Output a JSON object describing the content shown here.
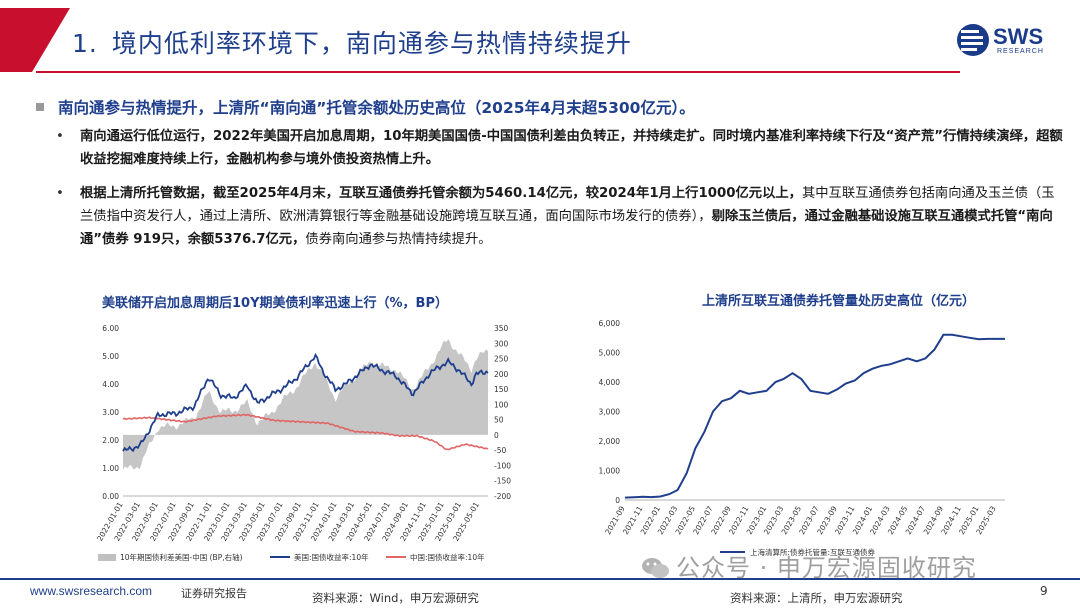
{
  "header": {
    "number": "1.",
    "title": "境内低利率环境下，南向通参与热情持续提升",
    "logo_main": "SWS",
    "logo_sub": "RESEARCH",
    "brand_color": "#1f3f8c",
    "accent_color": "#c8102e"
  },
  "lead": "南向通参与热情提升，上清所“南向通”托管余额处历史高位（2025年4月末超5300亿元）。",
  "bullets": [
    {
      "bold": "南向通运行低位运行，2022年美国开启加息周期，10年期美国国债-中国国债利差由负转正，并持续走扩。同时境内基准利率持续下行及“资产荒”行情持续演绎，超额收益挖掘难度持续上行，金融机构参与境外债投资热情上升。",
      "normal": ""
    },
    {
      "bold": "根据上清所托管数据，截至2025年4月末，互联互通债券托管余额为5460.14亿元，较2024年1月上行1000亿元以上，",
      "normal": "其中互联互通债券包括南向通及玉兰债（玉兰债指中资发行人，通过上清所、欧洲清算银行等金融基础设施跨境互联互通，面向国际市场发行的债券），",
      "bold2": "剔除玉兰债后，通过金融基础设施互联互通模式托管“南向通”债券 919只，余额5376.7亿元，",
      "normal2": "债券南向通参与热情持续提升。"
    }
  ],
  "chart1": {
    "title": "美联储开启加息周期后10Y期美债利率迅速上行（%，BP）",
    "left_ticks": [
      "6.00",
      "5.00",
      "4.00",
      "3.00",
      "2.00",
      "1.00",
      "0.00"
    ],
    "right_ticks": [
      "350",
      "300",
      "250",
      "200",
      "150",
      "100",
      "50",
      "0",
      "-50",
      "-100",
      "-150",
      "-200"
    ],
    "x_ticks": [
      "2022-01-01",
      "2022-03-01",
      "2022-05-01",
      "2022-07-01",
      "2022-09-01",
      "2022-11-01",
      "2023-01-01",
      "2023-03-01",
      "2023-05-01",
      "2023-07-01",
      "2023-09-01",
      "2023-11-01",
      "2024-01-01",
      "2024-03-01",
      "2024-05-01",
      "2024-07-01",
      "2024-09-01",
      "2024-11-01",
      "2025-01-01",
      "2025-03-01",
      "2025-05-01"
    ],
    "legend": [
      "10年期国债利差美国-中国 (BP,右轴)",
      "美国:国债收益率:10年",
      "中国:国债收益率:10年"
    ],
    "colors": {
      "spread": "#c0c0c0",
      "us": "#1f3f8c",
      "cn": "#e06666"
    },
    "source": "资料来源：Wind，申万宏源研究"
  },
  "chart2": {
    "title": "上清所互联互通债券托管量处历史高位（亿元）",
    "y_ticks": [
      "6,000",
      "5,000",
      "4,000",
      "3,000",
      "2,000",
      "1,000",
      "0"
    ],
    "x_ticks": [
      "2021-09",
      "2021-11",
      "2022-01",
      "2022-03",
      "2022-05",
      "2022-07",
      "2022-09",
      "2022-11",
      "2023-01",
      "2023-03",
      "2023-05",
      "2023-07",
      "2023-09",
      "2023-11",
      "2024-01",
      "2024-03",
      "2024-05",
      "2024-07",
      "2024-09",
      "2024-11",
      "2025-01",
      "2025-03"
    ],
    "legend": "上海清算所:债券托管量:互联互通债券",
    "color": "#1f3f8c",
    "source": "资料来源：上清所，申万宏源研究"
  },
  "chart_data": [
    {
      "type": "line",
      "title": "美联储开启加息周期后10Y期美债利率迅速上行（%，BP）",
      "x_range": [
        "2022-01-01",
        "2025-05-31"
      ],
      "ylim": [
        0,
        6
      ],
      "ylim_right": [
        -200,
        350
      ],
      "series": [
        {
          "name": "美国:国债收益率:10年",
          "axis": "left",
          "dates": [
            "2022-01-01",
            "2022-03-01",
            "2022-05-01",
            "2022-07-01",
            "2022-09-01",
            "2022-10-20",
            "2022-12-01",
            "2023-01-15",
            "2023-03-01",
            "2023-04-05",
            "2023-05-20",
            "2023-07-01",
            "2023-08-15",
            "2023-10-19",
            "2023-11-15",
            "2023-12-27",
            "2024-02-01",
            "2024-04-25",
            "2024-06-01",
            "2024-07-20",
            "2024-09-16",
            "2024-10-15",
            "2024-11-15",
            "2025-01-14",
            "2025-02-20",
            "2025-03-15",
            "2025-04-04",
            "2025-04-20",
            "2025-05-31"
          ],
          "values": [
            1.6,
            1.8,
            2.9,
            2.95,
            3.2,
            4.25,
            3.6,
            3.5,
            3.95,
            3.3,
            3.6,
            3.85,
            4.2,
            5.0,
            4.45,
            3.8,
            4.0,
            4.7,
            4.5,
            4.3,
            3.65,
            4.0,
            4.4,
            4.8,
            4.5,
            4.25,
            4.0,
            4.35,
            4.45
          ]
        },
        {
          "name": "中国:国债收益率:10年",
          "axis": "left",
          "dates": [
            "2022-01-01",
            "2022-04-01",
            "2022-08-01",
            "2022-11-15",
            "2023-03-01",
            "2023-06-01",
            "2023-09-01",
            "2023-12-01",
            "2024-03-01",
            "2024-06-01",
            "2024-08-01",
            "2024-10-01",
            "2024-12-01",
            "2025-01-10",
            "2025-03-15",
            "2025-05-31"
          ],
          "values": [
            2.75,
            2.8,
            2.65,
            2.85,
            2.9,
            2.7,
            2.65,
            2.6,
            2.3,
            2.25,
            2.15,
            2.15,
            1.95,
            1.65,
            1.85,
            1.68
          ]
        },
        {
          "name": "10年期国债利差美国-中国 (BP,右轴)",
          "axis": "right",
          "dates": [
            "2022-01-01",
            "2022-03-01",
            "2022-05-01",
            "2022-07-01",
            "2022-09-01",
            "2022-10-20",
            "2022-12-01",
            "2023-01-15",
            "2023-03-01",
            "2023-04-05",
            "2023-05-20",
            "2023-07-01",
            "2023-08-15",
            "2023-10-19",
            "2023-11-15",
            "2023-12-27",
            "2024-02-01",
            "2024-04-25",
            "2024-06-01",
            "2024-07-20",
            "2024-09-16",
            "2024-10-15",
            "2024-11-15",
            "2025-01-14",
            "2025-02-20",
            "2025-03-15",
            "2025-04-04",
            "2025-04-20",
            "2025-05-31"
          ],
          "values": [
            -115,
            -100,
            25,
            30,
            55,
            140,
            75,
            80,
            105,
            40,
            70,
            115,
            155,
            240,
            195,
            120,
            160,
            240,
            225,
            215,
            150,
            185,
            230,
            315,
            265,
            240,
            215,
            250,
            277
          ]
        }
      ]
    },
    {
      "type": "line",
      "title": "上清所互联互通债券托管量处历史高位（亿元）",
      "ylim": [
        0,
        6000
      ],
      "series": [
        {
          "name": "上海清算所:债券托管量:互联互通债券",
          "x": [
            "2021-09",
            "2021-10",
            "2021-11",
            "2021-12",
            "2022-01",
            "2022-02",
            "2022-03",
            "2022-04",
            "2022-05",
            "2022-06",
            "2022-07",
            "2022-08",
            "2022-09",
            "2022-10",
            "2022-11",
            "2022-12",
            "2023-01",
            "2023-02",
            "2023-03",
            "2023-04",
            "2023-05",
            "2023-06",
            "2023-07",
            "2023-08",
            "2023-09",
            "2023-10",
            "2023-11",
            "2023-12",
            "2024-01",
            "2024-02",
            "2024-03",
            "2024-04",
            "2024-05",
            "2024-06",
            "2024-07",
            "2024-08",
            "2024-09",
            "2024-10",
            "2024-11",
            "2024-12",
            "2025-01",
            "2025-02",
            "2025-03",
            "2025-04"
          ],
          "values": [
            80,
            90,
            110,
            100,
            120,
            200,
            340,
            900,
            1750,
            2300,
            3000,
            3350,
            3450,
            3700,
            3600,
            3650,
            3700,
            4000,
            4100,
            4300,
            4100,
            3700,
            3650,
            3600,
            3750,
            3950,
            4050,
            4300,
            4450,
            4550,
            4600,
            4700,
            4800,
            4700,
            4800,
            5100,
            5600,
            5600,
            5550,
            5500,
            5450,
            5460,
            5460,
            5460
          ]
        }
      ]
    }
  ]
}
